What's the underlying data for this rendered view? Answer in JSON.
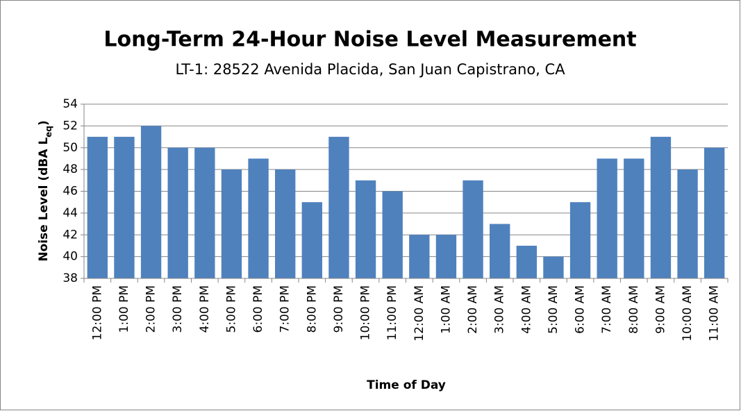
{
  "chart_data": {
    "type": "bar",
    "title": "Long-Term 24-Hour Noise Level Measurement",
    "subtitle": "LT-1: 28522 Avenida Placida, San Juan Capistrano, CA",
    "ylabel": [
      "Noise Level (dBA L",
      "eq",
      ")"
    ],
    "xlabel": "Time of Day",
    "categories": [
      "12:00 PM",
      "1:00 PM",
      "2:00 PM",
      "3:00 PM",
      "4:00 PM",
      "5:00 PM",
      "6:00 PM",
      "7:00 PM",
      "8:00 PM",
      "9:00 PM",
      "10:00 PM",
      "11:00 PM",
      "12:00 AM",
      "1:00 AM",
      "2:00 AM",
      "3:00 AM",
      "4:00 AM",
      "5:00 AM",
      "6:00 AM",
      "7:00 AM",
      "8:00 AM",
      "9:00 AM",
      "10:00 AM",
      "11:00 AM"
    ],
    "values": [
      51,
      51,
      52,
      50,
      50,
      48,
      49,
      48,
      45,
      51,
      47,
      46,
      42,
      42,
      47,
      43,
      41,
      40,
      45,
      49,
      49,
      51,
      48,
      50
    ],
    "color": "#4f81bd",
    "ylim": [
      38,
      54
    ],
    "yticks": [
      38,
      40,
      42,
      44,
      46,
      48,
      50,
      52,
      54
    ],
    "grid": true
  }
}
